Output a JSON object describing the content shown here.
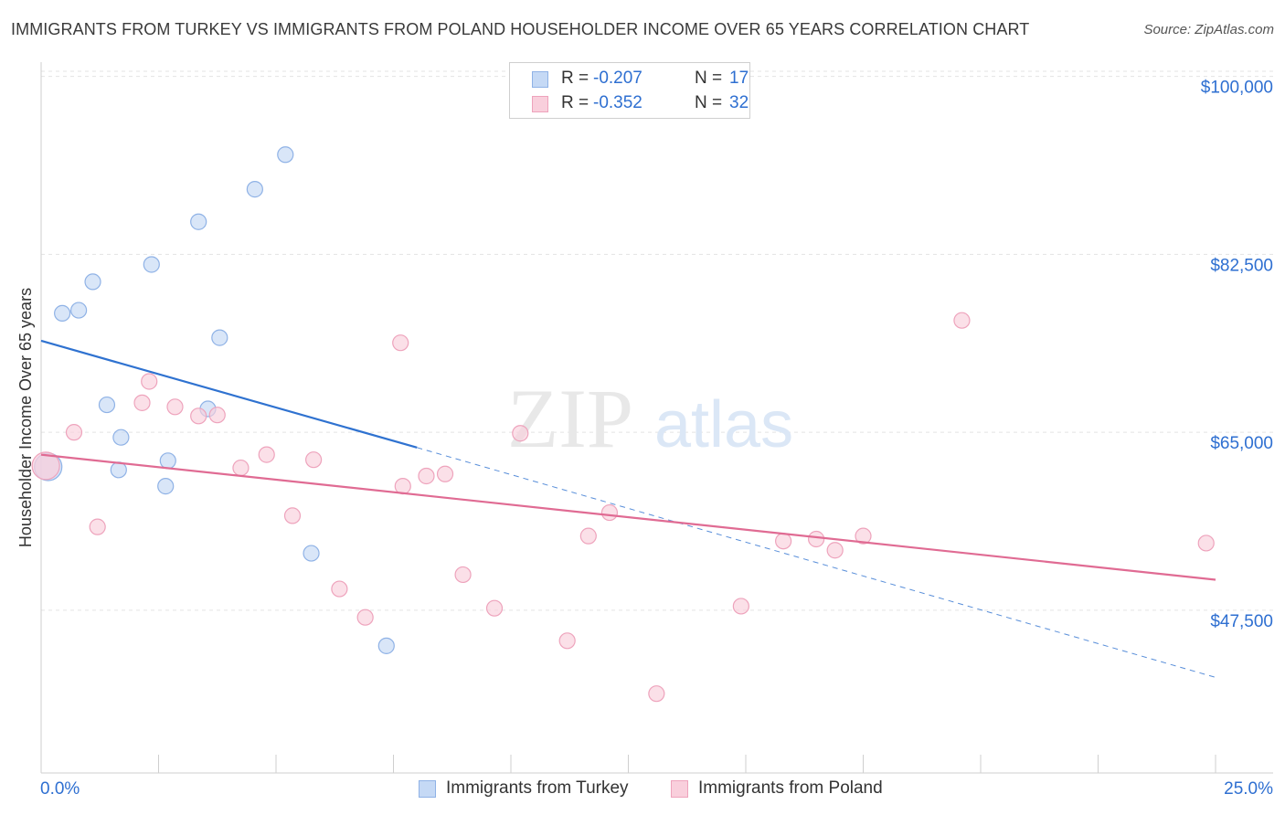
{
  "title": "IMMIGRANTS FROM TURKEY VS IMMIGRANTS FROM POLAND HOUSEHOLDER INCOME OVER 65 YEARS CORRELATION CHART",
  "source": "Source: ZipAtlas.com",
  "watermark": {
    "part1": "ZIP",
    "part2": "atlas"
  },
  "legend": {
    "turkey": {
      "r_label": "R =",
      "r_value": "-0.207",
      "n_label": "N =",
      "n_value": "17"
    },
    "poland": {
      "r_label": "R =",
      "r_value": "-0.352",
      "n_label": "N =",
      "n_value": "32"
    }
  },
  "bottom_legend": {
    "turkey_label": "Immigrants from Turkey",
    "poland_label": "Immigrants from Poland"
  },
  "colors": {
    "turkey_fill": "#c5d9f5",
    "turkey_stroke": "#8fb2e6",
    "turkey_line": "#2f72d0",
    "poland_fill": "#f9cfdc",
    "poland_stroke": "#eea3bc",
    "poland_line": "#e06b93",
    "axis_label": "#2e6fd1",
    "grid": "#e3e3e3"
  },
  "chart_data": {
    "type": "scatter",
    "title": "IMMIGRANTS FROM TURKEY VS IMMIGRANTS FROM POLAND HOUSEHOLDER INCOME OVER 65 YEARS CORRELATION CHART",
    "xlabel": "",
    "ylabel": "Householder Income Over 65 years",
    "xlim": [
      0,
      25
    ],
    "ylim": [
      31500,
      100500
    ],
    "x_tick_labels": {
      "left": "0.0%",
      "right": "25.0%"
    },
    "y_ticks": [
      {
        "value": 47500,
        "label": "$47,500"
      },
      {
        "value": 65000,
        "label": "$65,000"
      },
      {
        "value": 82500,
        "label": "$82,500"
      },
      {
        "value": 100000,
        "label": "$100,000"
      }
    ],
    "grid": true,
    "series": [
      {
        "name": "Immigrants from Turkey",
        "points": [
          [
            0.15,
            61600
          ],
          [
            0.45,
            76700
          ],
          [
            0.8,
            77000
          ],
          [
            1.1,
            79800
          ],
          [
            1.4,
            67700
          ],
          [
            1.7,
            64500
          ],
          [
            1.65,
            61300
          ],
          [
            2.35,
            81500
          ],
          [
            2.65,
            59700
          ],
          [
            2.7,
            62200
          ],
          [
            3.35,
            85700
          ],
          [
            3.55,
            67300
          ],
          [
            3.8,
            74300
          ],
          [
            4.55,
            88900
          ],
          [
            5.2,
            92300
          ],
          [
            5.75,
            53100
          ],
          [
            7.35,
            44000
          ]
        ],
        "trend": {
          "x": [
            0,
            8
          ],
          "y": [
            74000,
            63500
          ]
        },
        "trend_dashed_extension": {
          "x": [
            8,
            25
          ],
          "y": [
            63500,
            40900
          ]
        }
      },
      {
        "name": "Immigrants from Poland",
        "points": [
          [
            0.1,
            61700
          ],
          [
            0.7,
            65000
          ],
          [
            1.2,
            55700
          ],
          [
            2.15,
            67900
          ],
          [
            2.3,
            70000
          ],
          [
            2.85,
            67500
          ],
          [
            3.35,
            66600
          ],
          [
            3.75,
            66700
          ],
          [
            4.25,
            61500
          ],
          [
            4.8,
            62800
          ],
          [
            5.35,
            56800
          ],
          [
            5.8,
            62300
          ],
          [
            6.35,
            49600
          ],
          [
            6.9,
            46800
          ],
          [
            7.65,
            73800
          ],
          [
            7.7,
            59700
          ],
          [
            8.2,
            60700
          ],
          [
            8.6,
            60900
          ],
          [
            8.98,
            51000
          ],
          [
            9.65,
            47700
          ],
          [
            10.2,
            64900
          ],
          [
            11.2,
            44500
          ],
          [
            11.65,
            54800
          ],
          [
            12.1,
            57100
          ],
          [
            13.1,
            39300
          ],
          [
            14.9,
            47900
          ],
          [
            15.8,
            54300
          ],
          [
            16.5,
            54500
          ],
          [
            16.9,
            53400
          ],
          [
            17.5,
            54800
          ],
          [
            19.6,
            76000
          ],
          [
            24.8,
            54100
          ]
        ],
        "trend": {
          "x": [
            0,
            25
          ],
          "y": [
            62800,
            50500
          ]
        }
      }
    ]
  }
}
